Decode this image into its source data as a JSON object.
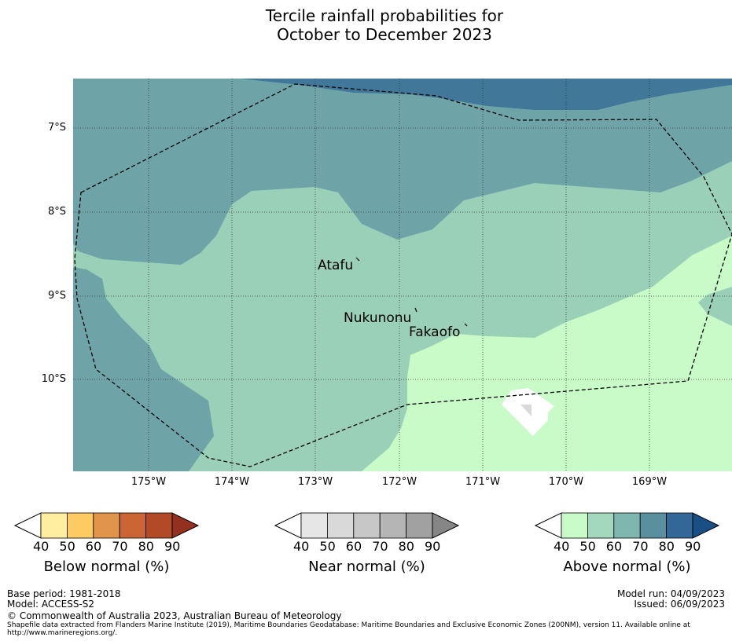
{
  "title": [
    "Tercile rainfall probabilities for",
    "October to December 2023"
  ],
  "map": {
    "lat_ticks": [
      "7°S",
      "8°S",
      "9°S",
      "10°S"
    ],
    "lon_ticks": [
      "175°W",
      "174°W",
      "173°W",
      "172°W",
      "171°W",
      "170°W",
      "169°W"
    ],
    "places": [
      "Atafu",
      "Nukunonu",
      "Fakaofo"
    ],
    "colors": {
      "above_90": "#41789a",
      "above_70": "#6ea4a8",
      "above_60": "#9bd0b8",
      "above_50": "#c8fbc8"
    }
  },
  "colorbars": [
    {
      "title": "Below normal (%)",
      "ticks": [
        "40",
        "50",
        "60",
        "70",
        "80",
        "90"
      ],
      "colors": [
        "#ffeda0",
        "#fecb63",
        "#e0954a",
        "#cc6535",
        "#b24a28",
        "#943020"
      ]
    },
    {
      "title": "Near normal (%)",
      "ticks": [
        "40",
        "50",
        "60",
        "70",
        "80",
        "90"
      ],
      "colors": [
        "#e6e6e6",
        "#d9d9d9",
        "#c7c7c7",
        "#b5b5b5",
        "#a1a1a1",
        "#868686"
      ]
    },
    {
      "title": "Above normal (%)",
      "ticks": [
        "40",
        "50",
        "60",
        "70",
        "80",
        "90"
      ],
      "colors": [
        "#c8fbc8",
        "#a4d8bc",
        "#7fb6ad",
        "#5a8fa0",
        "#336798",
        "#1a4f86"
      ]
    }
  ],
  "footer": {
    "base_period": "Base period: 1981-2018",
    "model": "Model: ACCESS-S2",
    "model_run": "Model run: 04/09/2023",
    "issued": "Issued: 06/09/2023",
    "copyright": "© Commonwealth of Australia 2023, Australian Bureau of Meteorology",
    "shapefile": "Shapefile data extracted from Flanders Marine Institute (2019), Maritime Boundaries Geodatabase: Maritime Boundaries and Exclusive Economic Zones (200NM), version 11. Available online at",
    "url": "http://www.marineregions.org/."
  }
}
